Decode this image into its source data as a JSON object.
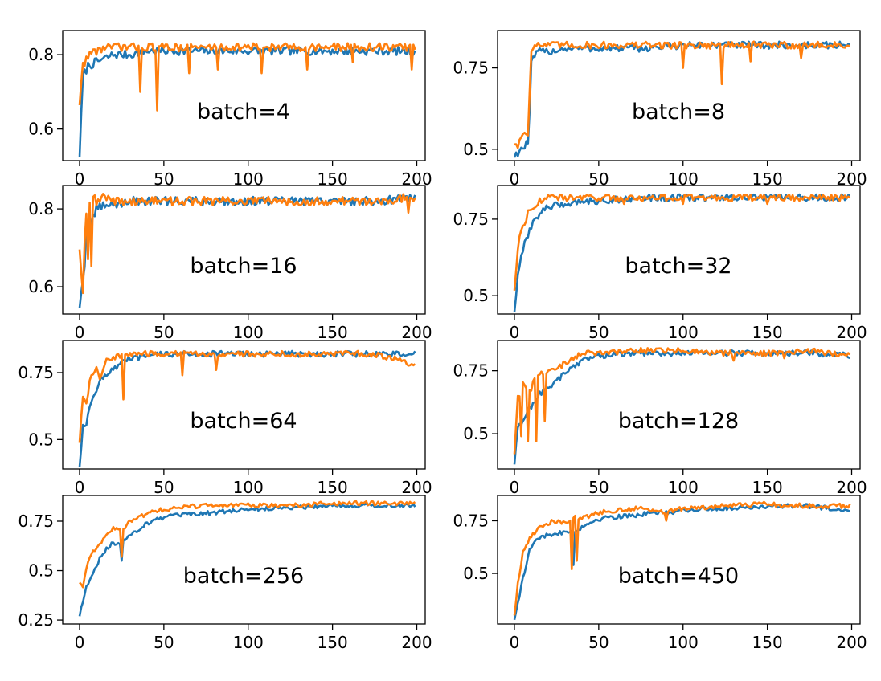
{
  "figure": {
    "colors": {
      "series_1": "#1f77b4",
      "series_2": "#ff7f0e"
    }
  },
  "chart_data": [
    {
      "type": "line",
      "label": "batch=4",
      "xlim": [
        -10,
        205
      ],
      "ylim": [
        0.515,
        0.865
      ],
      "xticks": [
        0,
        50,
        100,
        150,
        200
      ],
      "yticks": [
        0.6,
        0.8
      ],
      "x": [
        0,
        2,
        5,
        10,
        15,
        20,
        30,
        40,
        50,
        60,
        80,
        100,
        120,
        150,
        175,
        199
      ],
      "series": [
        {
          "color": "#1f77b4",
          "values": [
            0.53,
            0.74,
            0.77,
            0.78,
            0.79,
            0.8,
            0.8,
            0.81,
            0.81,
            0.81,
            0.81,
            0.81,
            0.81,
            0.81,
            0.81,
            0.81
          ]
        },
        {
          "color": "#ff7f0e",
          "values": [
            0.67,
            0.77,
            0.8,
            0.81,
            0.82,
            0.82,
            0.82,
            0.82,
            0.82,
            0.82,
            0.82,
            0.82,
            0.82,
            0.82,
            0.82,
            0.82
          ]
        }
      ],
      "dips": [
        {
          "series": 1,
          "x": 36,
          "value": 0.7
        },
        {
          "series": 1,
          "x": 46,
          "value": 0.65
        },
        {
          "series": 1,
          "x": 65,
          "value": 0.75
        },
        {
          "series": 1,
          "x": 82,
          "value": 0.76
        },
        {
          "series": 1,
          "x": 108,
          "value": 0.75
        },
        {
          "series": 1,
          "x": 135,
          "value": 0.76
        },
        {
          "series": 1,
          "x": 162,
          "value": 0.78
        },
        {
          "series": 1,
          "x": 197,
          "value": 0.76
        }
      ]
    },
    {
      "type": "line",
      "label": "batch=8",
      "xlim": [
        -10,
        205
      ],
      "ylim": [
        0.465,
        0.865
      ],
      "xticks": [
        0,
        50,
        100,
        150,
        200
      ],
      "yticks": [
        0.5,
        0.75
      ],
      "x": [
        0,
        2,
        4,
        6,
        8,
        9,
        10,
        12,
        15,
        20,
        30,
        50,
        75,
        100,
        125,
        150,
        175,
        199
      ],
      "series": [
        {
          "color": "#1f77b4",
          "values": [
            0.48,
            0.49,
            0.5,
            0.51,
            0.52,
            0.62,
            0.76,
            0.79,
            0.8,
            0.8,
            0.81,
            0.81,
            0.81,
            0.82,
            0.82,
            0.82,
            0.82,
            0.82
          ]
        },
        {
          "color": "#ff7f0e",
          "values": [
            0.52,
            0.51,
            0.54,
            0.55,
            0.55,
            0.68,
            0.81,
            0.82,
            0.82,
            0.82,
            0.82,
            0.82,
            0.82,
            0.82,
            0.82,
            0.82,
            0.82,
            0.82
          ]
        }
      ],
      "dips": [
        {
          "series": 1,
          "x": 100,
          "value": 0.75
        },
        {
          "series": 1,
          "x": 123,
          "value": 0.7
        },
        {
          "series": 1,
          "x": 140,
          "value": 0.77
        },
        {
          "series": 1,
          "x": 170,
          "value": 0.78
        }
      ]
    },
    {
      "type": "line",
      "label": "batch=16",
      "xlim": [
        -10,
        205
      ],
      "ylim": [
        0.53,
        0.86
      ],
      "xticks": [
        0,
        50,
        100,
        150,
        200
      ],
      "yticks": [
        0.6,
        0.8
      ],
      "x": [
        0,
        2,
        3,
        4,
        5,
        6,
        7,
        8,
        10,
        15,
        20,
        30,
        50,
        75,
        100,
        125,
        150,
        175,
        199
      ],
      "series": [
        {
          "color": "#1f77b4",
          "values": [
            0.55,
            0.62,
            0.66,
            0.75,
            0.76,
            0.72,
            0.75,
            0.78,
            0.8,
            0.81,
            0.81,
            0.82,
            0.82,
            0.82,
            0.82,
            0.82,
            0.82,
            0.82,
            0.83
          ]
        },
        {
          "color": "#ff7f0e",
          "values": [
            0.7,
            0.58,
            0.72,
            0.8,
            0.68,
            0.82,
            0.66,
            0.83,
            0.82,
            0.83,
            0.82,
            0.82,
            0.82,
            0.82,
            0.82,
            0.82,
            0.82,
            0.82,
            0.83
          ]
        }
      ],
      "dips": [
        {
          "series": 1,
          "x": 195,
          "value": 0.79
        }
      ]
    },
    {
      "type": "line",
      "label": "batch=32",
      "xlim": [
        -10,
        205
      ],
      "ylim": [
        0.44,
        0.86
      ],
      "xticks": [
        0,
        50,
        100,
        150,
        200
      ],
      "yticks": [
        0.5,
        0.75
      ],
      "x": [
        0,
        2,
        4,
        6,
        8,
        10,
        15,
        20,
        30,
        40,
        50,
        75,
        100,
        125,
        150,
        175,
        199
      ],
      "series": [
        {
          "color": "#1f77b4",
          "values": [
            0.45,
            0.56,
            0.62,
            0.67,
            0.7,
            0.73,
            0.77,
            0.79,
            0.8,
            0.81,
            0.81,
            0.82,
            0.82,
            0.82,
            0.82,
            0.82,
            0.82
          ]
        },
        {
          "color": "#ff7f0e",
          "values": [
            0.52,
            0.66,
            0.71,
            0.74,
            0.77,
            0.79,
            0.81,
            0.82,
            0.82,
            0.82,
            0.82,
            0.82,
            0.82,
            0.82,
            0.82,
            0.82,
            0.82
          ]
        }
      ],
      "dips": [
        {
          "series": 1,
          "x": 65,
          "value": 0.8
        },
        {
          "series": 1,
          "x": 100,
          "value": 0.8
        },
        {
          "series": 1,
          "x": 150,
          "value": 0.8
        }
      ]
    },
    {
      "type": "line",
      "label": "batch=64",
      "xlim": [
        -10,
        205
      ],
      "ylim": [
        0.39,
        0.87
      ],
      "xticks": [
        0,
        50,
        100,
        150,
        200
      ],
      "yticks": [
        0.5,
        0.75
      ],
      "x": [
        0,
        2,
        4,
        6,
        8,
        10,
        12,
        15,
        20,
        25,
        30,
        40,
        50,
        75,
        100,
        125,
        150,
        175,
        199
      ],
      "series": [
        {
          "color": "#1f77b4",
          "values": [
            0.4,
            0.56,
            0.55,
            0.62,
            0.66,
            0.69,
            0.72,
            0.74,
            0.76,
            0.79,
            0.8,
            0.81,
            0.82,
            0.82,
            0.82,
            0.82,
            0.82,
            0.82,
            0.82
          ]
        },
        {
          "color": "#ff7f0e",
          "values": [
            0.49,
            0.66,
            0.64,
            0.71,
            0.75,
            0.78,
            0.72,
            0.79,
            0.8,
            0.82,
            0.82,
            0.82,
            0.82,
            0.82,
            0.82,
            0.82,
            0.82,
            0.82,
            0.78
          ]
        }
      ],
      "dips": [
        {
          "series": 1,
          "x": 26,
          "value": 0.65
        },
        {
          "series": 1,
          "x": 61,
          "value": 0.74
        },
        {
          "series": 1,
          "x": 81,
          "value": 0.76
        }
      ]
    },
    {
      "type": "line",
      "label": "batch=128",
      "xlim": [
        -10,
        205
      ],
      "ylim": [
        0.36,
        0.87
      ],
      "xticks": [
        0,
        50,
        100,
        150,
        200
      ],
      "yticks": [
        0.5,
        0.75
      ],
      "x": [
        0,
        2,
        5,
        8,
        10,
        12,
        15,
        20,
        25,
        30,
        35,
        40,
        50,
        75,
        100,
        125,
        150,
        175,
        199
      ],
      "series": [
        {
          "color": "#1f77b4",
          "values": [
            0.38,
            0.52,
            0.55,
            0.59,
            0.61,
            0.63,
            0.66,
            0.68,
            0.71,
            0.74,
            0.77,
            0.79,
            0.81,
            0.82,
            0.82,
            0.82,
            0.82,
            0.82,
            0.81
          ]
        },
        {
          "color": "#ff7f0e",
          "values": [
            0.42,
            0.64,
            0.7,
            0.66,
            0.68,
            0.72,
            0.74,
            0.74,
            0.76,
            0.78,
            0.8,
            0.82,
            0.82,
            0.83,
            0.83,
            0.82,
            0.82,
            0.83,
            0.81
          ]
        }
      ],
      "dips": [
        {
          "series": 1,
          "x": 4,
          "value": 0.49
        },
        {
          "series": 1,
          "x": 8,
          "value": 0.47
        },
        {
          "series": 1,
          "x": 13,
          "value": 0.47
        },
        {
          "series": 1,
          "x": 18,
          "value": 0.55
        },
        {
          "series": 1,
          "x": 130,
          "value": 0.79
        },
        {
          "series": 1,
          "x": 160,
          "value": 0.8
        }
      ]
    },
    {
      "type": "line",
      "label": "batch=256",
      "xlim": [
        -10,
        205
      ],
      "ylim": [
        0.23,
        0.88
      ],
      "xticks": [
        0,
        50,
        100,
        150,
        200
      ],
      "yticks": [
        0.25,
        0.5,
        0.75
      ],
      "x": [
        0,
        2,
        5,
        10,
        15,
        20,
        25,
        30,
        35,
        40,
        50,
        60,
        75,
        100,
        125,
        150,
        175,
        199
      ],
      "series": [
        {
          "color": "#1f77b4",
          "values": [
            0.27,
            0.35,
            0.44,
            0.53,
            0.6,
            0.64,
            0.64,
            0.68,
            0.71,
            0.74,
            0.77,
            0.78,
            0.79,
            0.81,
            0.82,
            0.83,
            0.83,
            0.83
          ]
        },
        {
          "color": "#ff7f0e",
          "values": [
            0.44,
            0.42,
            0.55,
            0.62,
            0.67,
            0.71,
            0.7,
            0.75,
            0.77,
            0.79,
            0.81,
            0.82,
            0.83,
            0.83,
            0.83,
            0.84,
            0.84,
            0.84
          ]
        }
      ],
      "dips": [
        {
          "series": 0,
          "x": 25,
          "value": 0.55
        },
        {
          "series": 1,
          "x": 25,
          "value": 0.57
        }
      ]
    },
    {
      "type": "line",
      "label": "batch=450",
      "xlim": [
        -10,
        205
      ],
      "ylim": [
        0.26,
        0.87
      ],
      "xticks": [
        0,
        50,
        100,
        150,
        200
      ],
      "yticks": [
        0.5,
        0.75
      ],
      "x": [
        0,
        2,
        5,
        8,
        10,
        15,
        20,
        25,
        30,
        35,
        40,
        50,
        60,
        75,
        90,
        100,
        125,
        150,
        175,
        199
      ],
      "series": [
        {
          "color": "#1f77b4",
          "values": [
            0.28,
            0.36,
            0.48,
            0.58,
            0.63,
            0.67,
            0.68,
            0.69,
            0.7,
            0.7,
            0.72,
            0.76,
            0.77,
            0.78,
            0.79,
            0.8,
            0.81,
            0.82,
            0.82,
            0.8
          ]
        },
        {
          "color": "#ff7f0e",
          "values": [
            0.3,
            0.45,
            0.6,
            0.65,
            0.68,
            0.72,
            0.74,
            0.75,
            0.74,
            0.77,
            0.76,
            0.79,
            0.8,
            0.81,
            0.79,
            0.81,
            0.82,
            0.83,
            0.82,
            0.82
          ]
        }
      ],
      "dips": [
        {
          "series": 0,
          "x": 35,
          "value": 0.54
        },
        {
          "series": 1,
          "x": 34,
          "value": 0.52
        },
        {
          "series": 1,
          "x": 37,
          "value": 0.56
        },
        {
          "series": 1,
          "x": 90,
          "value": 0.75
        }
      ]
    }
  ]
}
